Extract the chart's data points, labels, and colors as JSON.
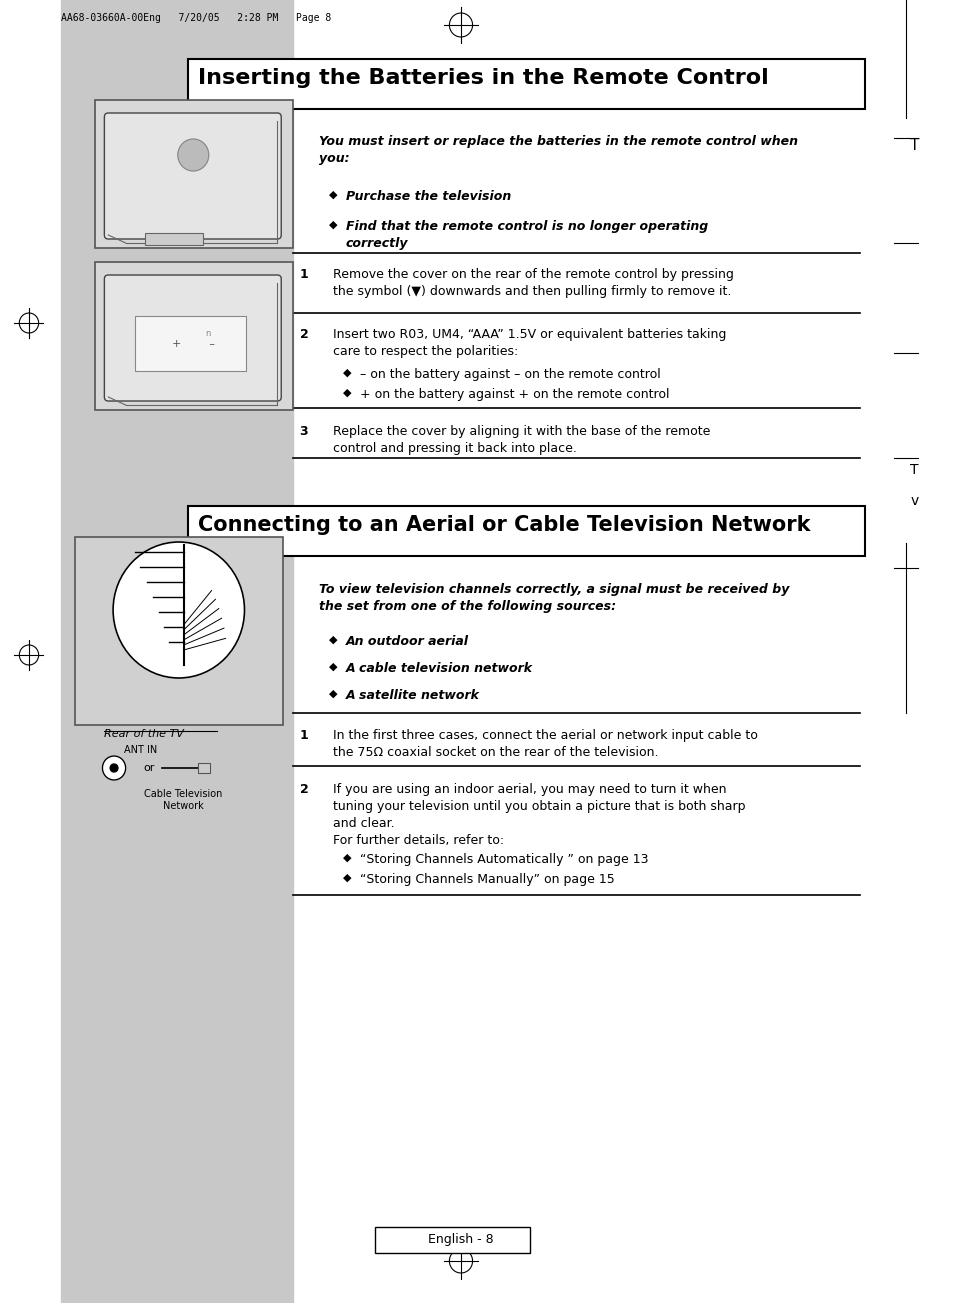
{
  "page_bg": "#ffffff",
  "left_panel_bg": "#c8c8c8",
  "header_text": "AA68-03660A-00Eng   7/20/05   2:28 PM   Page 8",
  "section1_title": "Inserting the Batteries in the Remote Control",
  "section2_title": "Connecting to an Aerial or Cable Television Network",
  "footer_text": "English - 8",
  "intro1_bold": "You must insert or replace the batteries in the remote control when\nyou:",
  "bullet1_1": "Purchase the television",
  "bullet1_2": "Find that the remote control is no longer operating\ncorrectly",
  "step1_num": "1",
  "step1_text": "Remove the cover on the rear of the remote control by pressing\nthe symbol (▼) downwards and then pulling firmly to remove it.",
  "step2_num": "2",
  "step2_text": "Insert two R03, UM4, “AAA” 1.5V or equivalent batteries taking\ncare to respect the polarities:",
  "step2_b1": "– on the battery against – on the remote control",
  "step2_b2": "+ on the battery against + on the remote control",
  "step3_num": "3",
  "step3_text": "Replace the cover by aligning it with the base of the remote\ncontrol and pressing it back into place.",
  "intro2_bold": "To view television channels correctly, a signal must be received by\nthe set from one of the following sources:",
  "bullet2_1": "An outdoor aerial",
  "bullet2_2": "A cable television network",
  "bullet2_3": "A satellite network",
  "step4_num": "1",
  "step4_text": "In the first three cases, connect the aerial or network input cable to\nthe 75Ω coaxial socket on the rear of the television.",
  "step5_num": "2",
  "step5_text": "If you are using an indoor aerial, you may need to turn it when\ntuning your television until you obtain a picture that is both sharp\nand clear.\nFor further details, refer to:",
  "step5_b1": "“Storing Channels Automatically ” on page 13",
  "step5_b2": "“Storing Channels Manually” on page 15",
  "label_rear": "Rear of the TV",
  "label_ant": "ANT IN",
  "label_cable": "Cable Television\nNetwork",
  "right_margin_T1": "T",
  "right_margin_Tv": "T\nv"
}
